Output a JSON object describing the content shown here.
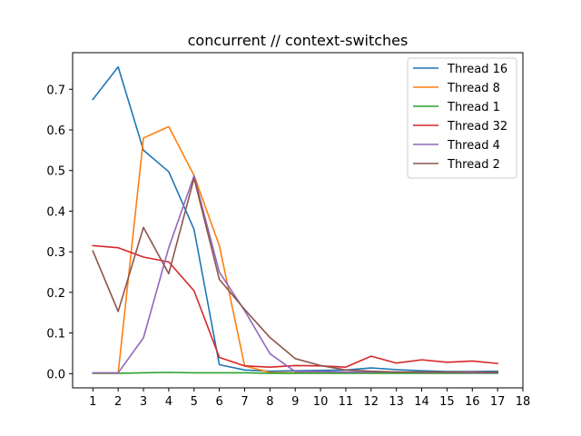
{
  "chart_data": {
    "type": "line",
    "title": "concurrent // context-switches",
    "xlabel": "",
    "ylabel": "",
    "xlim": [
      0.2,
      18
    ],
    "ylim": [
      -0.035,
      0.79
    ],
    "xticks": [
      1,
      2,
      3,
      4,
      5,
      6,
      7,
      8,
      9,
      10,
      11,
      12,
      13,
      14,
      15,
      16,
      17,
      18
    ],
    "yticks": [
      0.0,
      0.1,
      0.2,
      0.3,
      0.4,
      0.5,
      0.6,
      0.7
    ],
    "ytick_labels": [
      "0.0",
      "0.1",
      "0.2",
      "0.3",
      "0.4",
      "0.5",
      "0.6",
      "0.7"
    ],
    "grid": false,
    "legend_position": "top-right",
    "x": [
      1,
      2,
      3,
      4,
      5,
      6,
      7,
      8,
      9,
      10,
      11,
      12,
      13,
      14,
      15,
      16,
      17
    ],
    "series": [
      {
        "name": "Thread 16",
        "color": "#1f77b4",
        "values": [
          0.675,
          0.755,
          0.55,
          0.497,
          0.355,
          0.022,
          0.009,
          0.006,
          0.007,
          0.008,
          0.009,
          0.014,
          0.01,
          0.007,
          0.005,
          0.005,
          0.006
        ]
      },
      {
        "name": "Thread 8",
        "color": "#ff7f0e",
        "values": [
          0.001,
          0.001,
          0.58,
          0.608,
          0.488,
          0.315,
          0.019,
          0.003,
          0.002,
          0.002,
          0.002,
          0.002,
          0.002,
          0.002,
          0.002,
          0.002,
          0.002
        ]
      },
      {
        "name": "Thread 1",
        "color": "#2ca02c",
        "values": [
          0.001,
          0.001,
          0.002,
          0.003,
          0.002,
          0.002,
          0.002,
          0.001,
          0.001,
          0.001,
          0.001,
          0.001,
          0.001,
          0.001,
          0.001,
          0.001,
          0.001
        ]
      },
      {
        "name": "Thread 32",
        "color": "#d62728",
        "values": [
          0.315,
          0.31,
          0.287,
          0.275,
          0.204,
          0.04,
          0.019,
          0.016,
          0.02,
          0.019,
          0.016,
          0.043,
          0.026,
          0.034,
          0.028,
          0.031,
          0.025
        ]
      },
      {
        "name": "Thread 4",
        "color": "#9467bd",
        "values": [
          0.002,
          0.002,
          0.088,
          0.31,
          0.487,
          0.25,
          0.155,
          0.049,
          0.005,
          0.005,
          0.004,
          0.004,
          0.004,
          0.003,
          0.003,
          0.002,
          0.002
        ]
      },
      {
        "name": "Thread 2",
        "color": "#8c564b",
        "values": [
          0.302,
          0.153,
          0.36,
          0.246,
          0.481,
          0.232,
          0.158,
          0.089,
          0.037,
          0.02,
          0.009,
          0.006,
          0.004,
          0.004,
          0.004,
          0.004,
          0.003
        ]
      }
    ]
  }
}
